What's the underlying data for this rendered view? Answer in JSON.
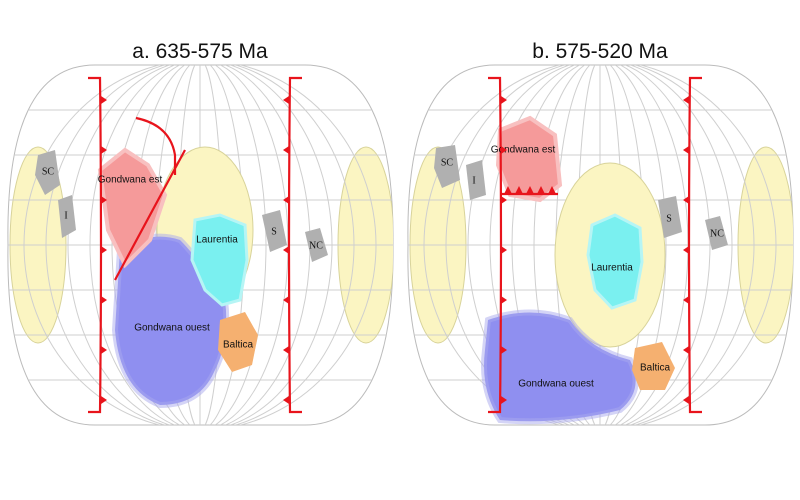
{
  "panels": [
    {
      "title": "a. 635-575 Ma",
      "labels": {
        "sc": "SC",
        "i": "I",
        "gondwana_est": "Gondwana est",
        "laurentia": "Laurentia",
        "gondwana_ouest": "Gondwana ouest",
        "baltica": "Baltica",
        "s": "S",
        "nc": "NC"
      }
    },
    {
      "title": "b. 575-520 Ma",
      "labels": {
        "sc": "SC",
        "i": "I",
        "gondwana_est": "Gondwana est",
        "laurentia": "Laurentia",
        "gondwana_ouest": "Gondwana ouest",
        "baltica": "Baltica",
        "s": "S",
        "nc": "NC"
      }
    }
  ]
}
